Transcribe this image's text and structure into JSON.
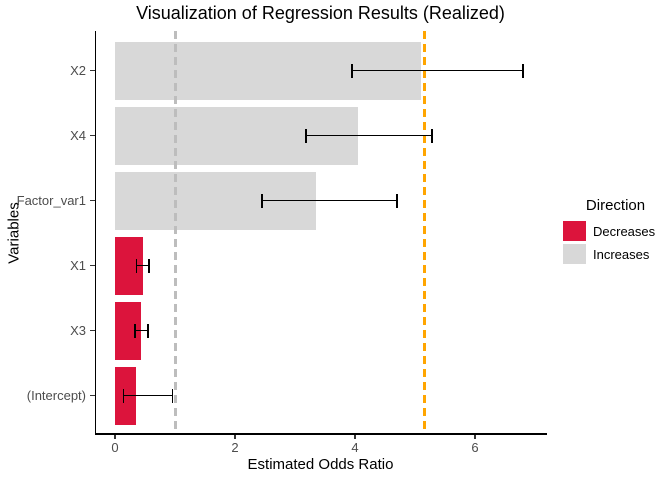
{
  "chart_data": {
    "type": "bar",
    "orientation": "horizontal",
    "title": "Visualization of Regression Results (Realized)",
    "xlabel": "Estimated Odds Ratio",
    "ylabel": "Variables",
    "categories": [
      "X2",
      "X4",
      "Factor_var1",
      "X1",
      "X3",
      "(Intercept)"
    ],
    "series": [
      {
        "name": "X2",
        "estimate": 5.1,
        "ci_low": 3.95,
        "ci_high": 6.8,
        "direction": "Increases"
      },
      {
        "name": "X4",
        "estimate": 4.05,
        "ci_low": 3.18,
        "ci_high": 5.28,
        "direction": "Increases"
      },
      {
        "name": "Factor_var1",
        "estimate": 3.35,
        "ci_low": 2.45,
        "ci_high": 4.7,
        "direction": "Increases"
      },
      {
        "name": "X1",
        "estimate": 0.47,
        "ci_low": 0.36,
        "ci_high": 0.57,
        "direction": "Decreases"
      },
      {
        "name": "X3",
        "estimate": 0.44,
        "ci_low": 0.33,
        "ci_high": 0.55,
        "direction": "Decreases"
      },
      {
        "name": "(Intercept)",
        "estimate": 0.35,
        "ci_low": 0.14,
        "ci_high": 0.96,
        "direction": "Decreases"
      }
    ],
    "x_ticks": [
      0,
      2,
      4,
      6
    ],
    "xlim": [
      -0.32,
      7.15
    ],
    "grid": false,
    "reference_lines": [
      {
        "x": 1.0,
        "color": "#BDBDBD",
        "style": "dashed"
      },
      {
        "x": 5.15,
        "color": "#FFA500",
        "style": "dashed"
      }
    ],
    "colors": {
      "Decreases": "#DC143C",
      "Increases": "#D8D8D8"
    },
    "legend": {
      "title": "Direction",
      "position": "right",
      "items": [
        {
          "label": "Decreases",
          "color": "#DC143C"
        },
        {
          "label": "Increases",
          "color": "#D8D8D8"
        }
      ]
    }
  }
}
